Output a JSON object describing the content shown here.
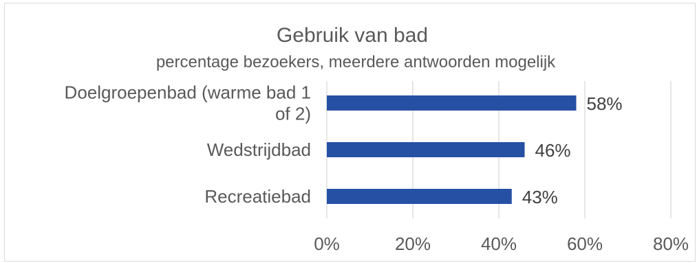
{
  "chart_data": {
    "type": "bar",
    "orientation": "horizontal",
    "title": "Gebruik van bad",
    "subtitle": "percentage bezoekers, meerdere antwoorden mogelijk",
    "categories": [
      "Doelgroepenbad (warme bad 1 of 2)",
      "Wedstrijdbad",
      "Recreatiebad"
    ],
    "category_lines": [
      [
        "Doelgroepenbad (warme bad 1",
        "of 2)"
      ],
      [
        "Wedstrijdbad"
      ],
      [
        "Recreatiebad"
      ]
    ],
    "values": [
      58,
      46,
      43
    ],
    "data_labels": [
      "58%",
      "46%",
      "43%"
    ],
    "xlim": [
      0,
      80
    ],
    "x_ticks": [
      0,
      20,
      40,
      60,
      80
    ],
    "x_tick_labels": [
      "0%",
      "20%",
      "40%",
      "60%",
      "80%"
    ],
    "grid": true,
    "legend": "none",
    "bar_color": "#2650a3"
  }
}
